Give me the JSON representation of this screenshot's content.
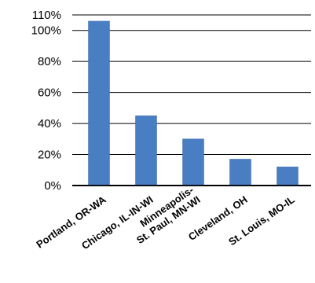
{
  "chart_data": {
    "type": "bar",
    "categories": [
      [
        "Portland, OR-WA"
      ],
      [
        "Chicago, IL-IN-WI"
      ],
      [
        "Minneapolis-",
        "St. Paul, MN-WI"
      ],
      [
        "Cleveland, OH"
      ],
      [
        "St. Louis, MO-IL"
      ]
    ],
    "values": [
      106,
      45,
      30,
      17,
      12
    ],
    "value_unit": "percent",
    "ylim": [
      0,
      110
    ],
    "yticks": [
      0,
      20,
      40,
      60,
      80,
      100,
      110
    ],
    "ytick_labels": [
      "0%",
      "20%",
      "40%",
      "60%",
      "80%",
      "100%",
      "110%"
    ],
    "title": "",
    "xlabel": "",
    "ylabel": "",
    "grid": "horizontal",
    "legend": "none",
    "colors": {
      "bar": "#4a7ec2",
      "bar_edge": "#3d6bab",
      "grid": "#000000",
      "text": "#000000"
    }
  }
}
